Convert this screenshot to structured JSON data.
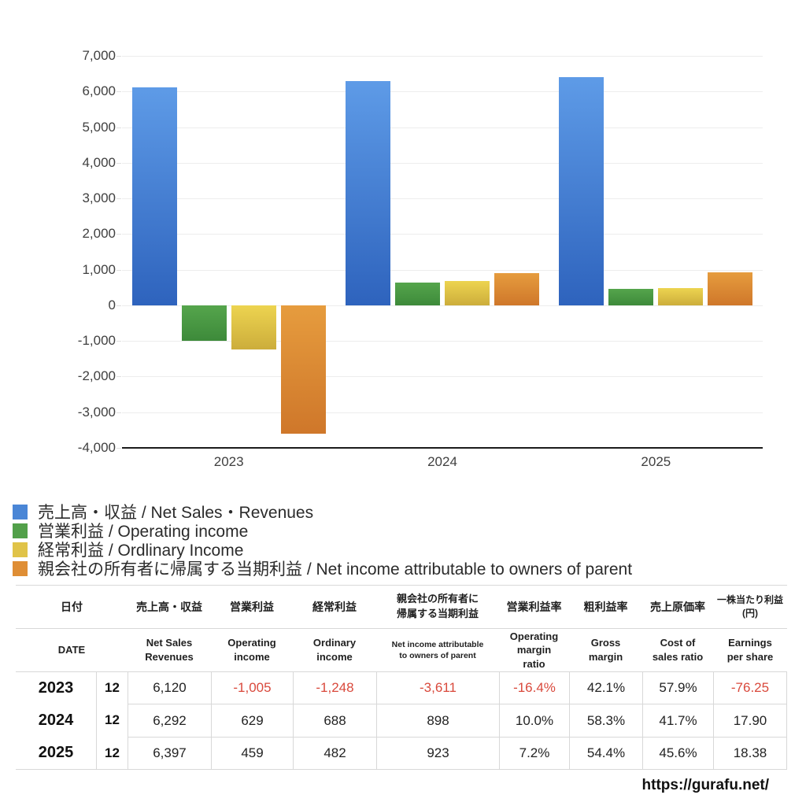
{
  "chart_data": {
    "type": "bar",
    "title": "",
    "xlabel": "",
    "ylabel": "",
    "categories": [
      "2023",
      "2024",
      "2025"
    ],
    "series": [
      {
        "name": "売上高・収益 / Net Sales・Revenues",
        "slug": "net-sales-revenues",
        "values": [
          6120,
          6292,
          6397
        ],
        "color_top": "#5e9be7",
        "color_bottom": "#2e63bd",
        "legend_color": "#4a86d6"
      },
      {
        "name": "営業利益 / Operating income",
        "slug": "operating-income",
        "values": [
          -1005,
          629,
          459
        ],
        "color_top": "#55a54c",
        "color_bottom": "#3d8a3a",
        "legend_color": "#52a04a"
      },
      {
        "name": "経常利益 / Ordlinary Income",
        "slug": "ordinary-income",
        "values": [
          -1248,
          688,
          482
        ],
        "color_top": "#edd450",
        "color_bottom": "#ccad3b",
        "legend_color": "#e0c348"
      },
      {
        "name": "親会社の所有者に帰属する当期利益 / Net income attributable to owners of parent",
        "slug": "net-income-parent",
        "values": [
          -3611,
          898,
          923
        ],
        "color_top": "#e69c3e",
        "color_bottom": "#cf772a",
        "legend_color": "#df8e35"
      }
    ],
    "ylim": [
      -4000,
      7000
    ],
    "y_tick_step": 1000,
    "grid": true,
    "legend_position": "bottom-left"
  },
  "table": {
    "headers_jp": [
      "日付",
      "売上高・収益",
      "営業利益",
      "経常利益",
      "親会社の所有者に\n帰属する当期利益",
      "営業利益率",
      "粗利益率",
      "売上原価率",
      "一株当たり利益\n(円)"
    ],
    "headers_en": [
      "DATE",
      "Net Sales\nRevenues",
      "Operating\nincome",
      "Ordinary\nincome",
      "Net income attributable\nto owners of parent",
      "Operating\nmargin\nratio",
      "Gross\nmargin",
      "Cost of\nsales ratio",
      "Earnings\nper share"
    ],
    "rows": [
      {
        "year": "2023",
        "month": "12",
        "values": [
          "6,120",
          "-1,005",
          "-1,248",
          "-3,611",
          "-16.4%",
          "42.1%",
          "57.9%",
          "-76.25"
        ]
      },
      {
        "year": "2024",
        "month": "12",
        "values": [
          "6,292",
          "629",
          "688",
          "898",
          "10.0%",
          "58.3%",
          "41.7%",
          "17.90"
        ]
      },
      {
        "year": "2025",
        "month": "12",
        "values": [
          "6,397",
          "459",
          "482",
          "923",
          "7.2%",
          "54.4%",
          "45.6%",
          "18.38"
        ]
      }
    ],
    "negative_color": "#d9493c"
  },
  "footer": {
    "url": "https://gurafu.net/"
  }
}
